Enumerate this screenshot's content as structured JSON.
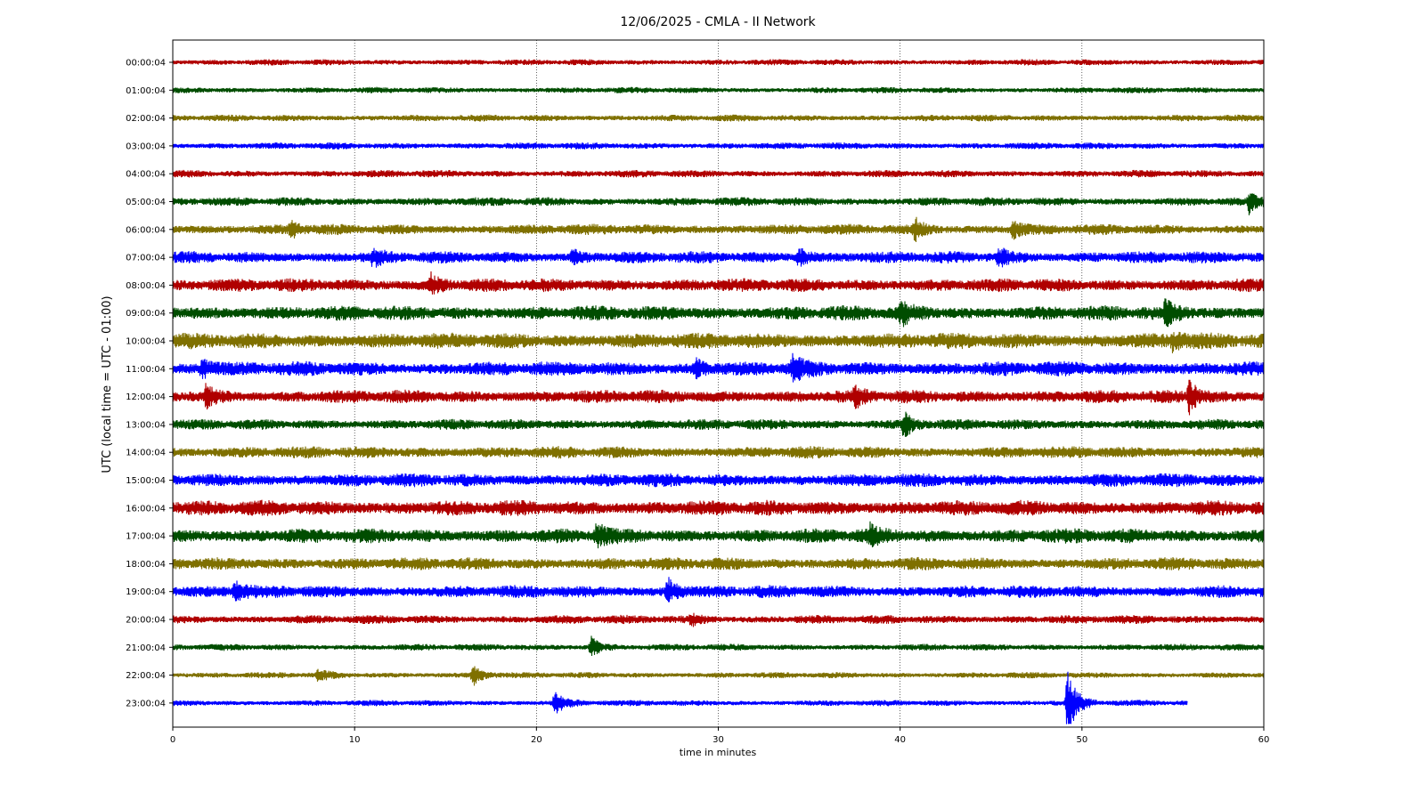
{
  "chart_data": {
    "type": "line",
    "title": "12/06/2025 - CMLA - II Network",
    "xlabel": "time in minutes",
    "ylabel": "UTC (local time = UTC - 01:00)",
    "xlim": [
      0,
      60
    ],
    "xticks": [
      "0",
      "10",
      "20",
      "30",
      "40",
      "50",
      "60"
    ],
    "grid": "vertical dotted",
    "colors": [
      "#b00000",
      "#004d00",
      "#7f7000",
      "#0000ff"
    ],
    "series": [
      {
        "label": "00:00:04",
        "end": 60,
        "noise": 0.9,
        "events": []
      },
      {
        "label": "01:00:04",
        "end": 60,
        "noise": 0.9,
        "events": []
      },
      {
        "label": "02:00:04",
        "end": 60,
        "noise": 1.0,
        "events": []
      },
      {
        "label": "03:00:04",
        "end": 60,
        "noise": 1.0,
        "events": []
      },
      {
        "label": "04:00:04",
        "end": 60,
        "noise": 1.1,
        "events": []
      },
      {
        "label": "05:00:04",
        "end": 60,
        "noise": 1.3,
        "events": [
          {
            "t": 59.2,
            "amp": 3.5
          }
        ]
      },
      {
        "label": "06:00:04",
        "end": 60,
        "noise": 1.6,
        "events": [
          {
            "t": 6.5,
            "amp": 2.5
          },
          {
            "t": 40.8,
            "amp": 3.5
          },
          {
            "t": 46.2,
            "amp": 2.5
          }
        ]
      },
      {
        "label": "07:00:04",
        "end": 60,
        "noise": 1.8,
        "events": [
          {
            "t": 11,
            "amp": 2.5
          },
          {
            "t": 22,
            "amp": 2
          },
          {
            "t": 34.4,
            "amp": 3
          },
          {
            "t": 45.4,
            "amp": 3
          }
        ]
      },
      {
        "label": "08:00:04",
        "end": 60,
        "noise": 2.0,
        "events": [
          {
            "t": 14.2,
            "amp": 3
          }
        ]
      },
      {
        "label": "09:00:04",
        "end": 60,
        "noise": 2.2,
        "events": [
          {
            "t": 40,
            "amp": 4
          },
          {
            "t": 54.6,
            "amp": 4
          }
        ]
      },
      {
        "label": "10:00:04",
        "end": 60,
        "noise": 2.4,
        "events": [
          {
            "t": 55,
            "amp": 3
          }
        ]
      },
      {
        "label": "11:00:04",
        "end": 60,
        "noise": 2.2,
        "events": [
          {
            "t": 1.6,
            "amp": 3
          },
          {
            "t": 28.7,
            "amp": 3
          },
          {
            "t": 34.1,
            "amp": 3.5
          }
        ]
      },
      {
        "label": "12:00:04",
        "end": 60,
        "noise": 2.0,
        "events": [
          {
            "t": 1.8,
            "amp": 3
          },
          {
            "t": 37.5,
            "amp": 3
          },
          {
            "t": 55.9,
            "amp": 5
          }
        ]
      },
      {
        "label": "13:00:04",
        "end": 60,
        "noise": 1.6,
        "events": [
          {
            "t": 40.2,
            "amp": 4
          }
        ]
      },
      {
        "label": "14:00:04",
        "end": 60,
        "noise": 1.8,
        "events": []
      },
      {
        "label": "15:00:04",
        "end": 60,
        "noise": 2.0,
        "events": []
      },
      {
        "label": "16:00:04",
        "end": 60,
        "noise": 2.3,
        "events": []
      },
      {
        "label": "17:00:04",
        "end": 60,
        "noise": 2.2,
        "events": [
          {
            "t": 23.3,
            "amp": 4
          },
          {
            "t": 38.3,
            "amp": 3
          }
        ]
      },
      {
        "label": "18:00:04",
        "end": 60,
        "noise": 1.9,
        "events": []
      },
      {
        "label": "19:00:04",
        "end": 60,
        "noise": 1.9,
        "events": [
          {
            "t": 3.4,
            "amp": 3
          },
          {
            "t": 27.2,
            "amp": 4.5
          }
        ]
      },
      {
        "label": "20:00:04",
        "end": 60,
        "noise": 1.3,
        "events": [
          {
            "t": 28.5,
            "amp": 2
          }
        ]
      },
      {
        "label": "21:00:04",
        "end": 60,
        "noise": 1.0,
        "events": [
          {
            "t": 23,
            "amp": 3.5
          }
        ]
      },
      {
        "label": "22:00:04",
        "end": 60,
        "noise": 0.9,
        "events": [
          {
            "t": 16.5,
            "amp": 3.5
          },
          {
            "t": 8,
            "amp": 2
          }
        ]
      },
      {
        "label": "23:00:04",
        "end": 55.8,
        "noise": 0.9,
        "events": [
          {
            "t": 21,
            "amp": 4.5
          },
          {
            "t": 49.2,
            "amp": 12
          }
        ]
      }
    ]
  }
}
